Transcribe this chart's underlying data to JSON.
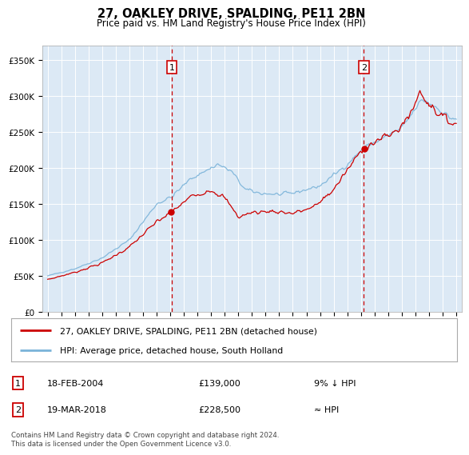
{
  "title": "27, OAKLEY DRIVE, SPALDING, PE11 2BN",
  "subtitle": "Price paid vs. HM Land Registry's House Price Index (HPI)",
  "plot_bg_color": "#dce9f5",
  "outer_bg_color": "#ffffff",
  "hpi_color": "#7ab3d9",
  "price_color": "#cc0000",
  "vline_color": "#cc0000",
  "ylim": [
    0,
    370000
  ],
  "yticks": [
    0,
    50000,
    100000,
    150000,
    200000,
    250000,
    300000,
    350000
  ],
  "ytick_labels": [
    "£0",
    "£50K",
    "£100K",
    "£150K",
    "£200K",
    "£250K",
    "£300K",
    "£350K"
  ],
  "marker1_date": 2004.12,
  "marker1_price": 139000,
  "marker2_date": 2018.21,
  "marker2_price": 228500,
  "legend_line1": "27, OAKLEY DRIVE, SPALDING, PE11 2BN (detached house)",
  "legend_line2": "HPI: Average price, detached house, South Holland",
  "footer": "Contains HM Land Registry data © Crown copyright and database right 2024.\nThis data is licensed under the Open Government Licence v3.0."
}
